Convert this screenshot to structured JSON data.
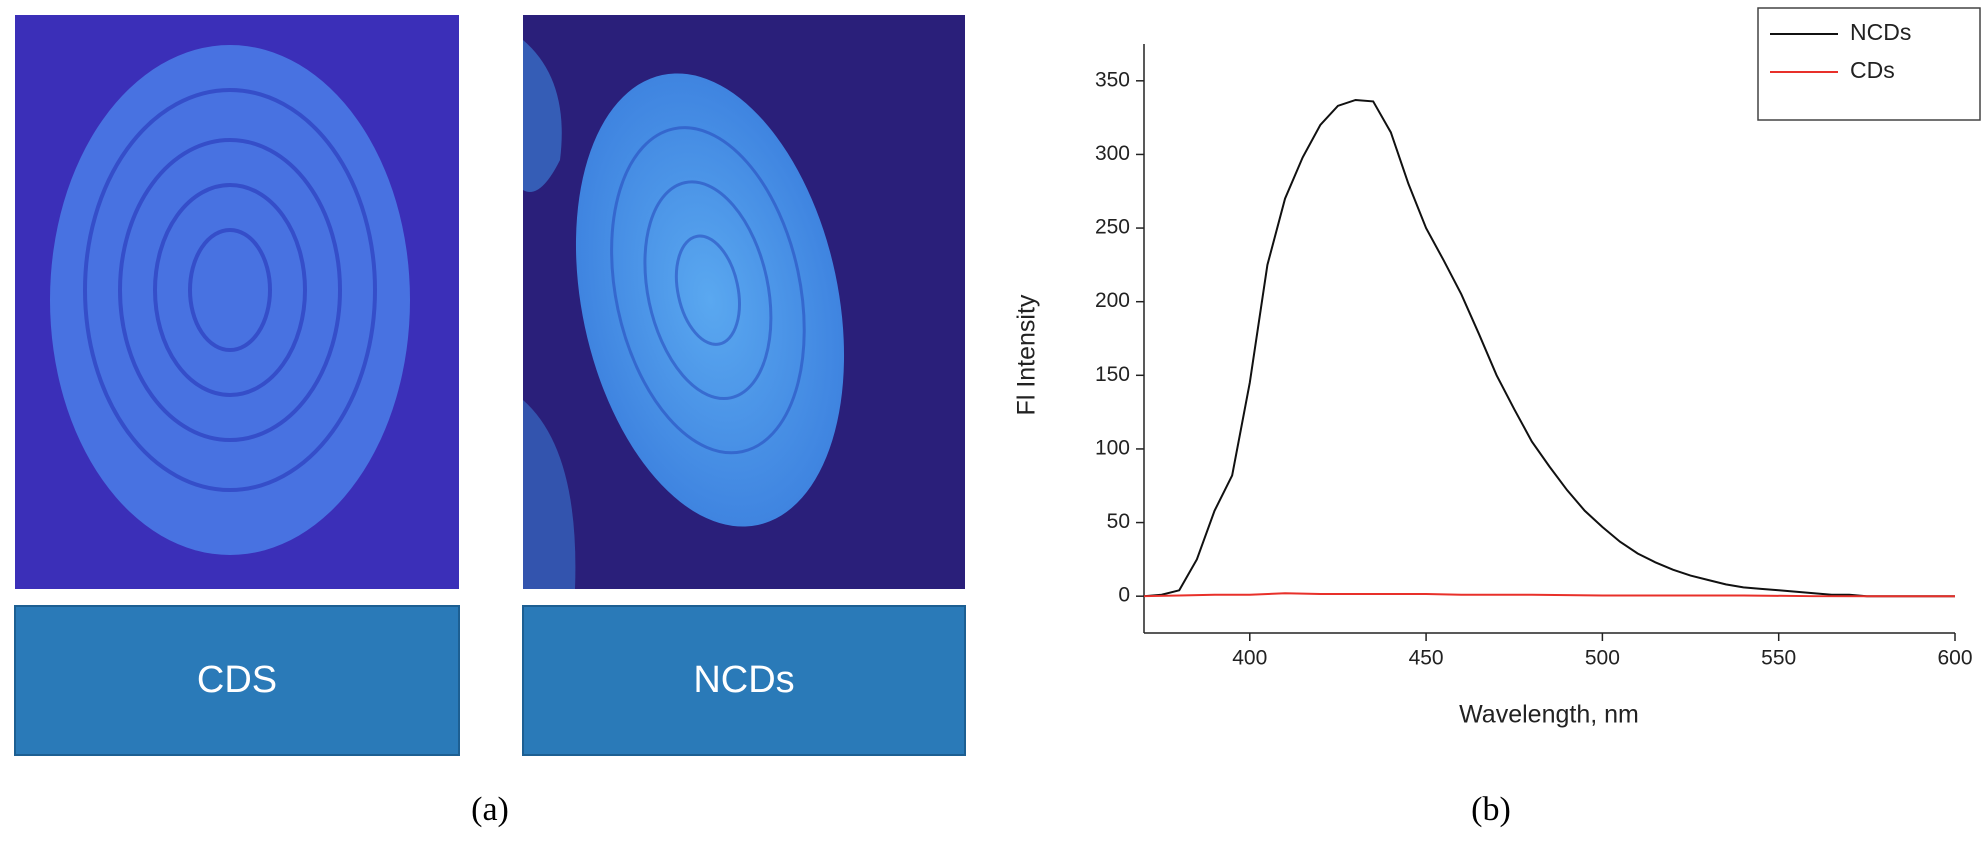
{
  "photos": [
    {
      "label": "CDS"
    },
    {
      "label": "NCDs"
    }
  ],
  "captions": [
    "(a)",
    "(b)"
  ],
  "chart_data": {
    "type": "line",
    "x_label": "Wavelength, nm",
    "y_label": "Fl Intensity",
    "xlim": [
      370,
      600
    ],
    "xticks": [
      400,
      450,
      500,
      550,
      600
    ],
    "ylim": [
      -25,
      375
    ],
    "yticks": [
      0,
      50,
      100,
      150,
      200,
      250,
      300,
      350
    ],
    "legend": "upper right",
    "series": [
      {
        "name": "NCDs",
        "color": "#111111",
        "x": [
          370,
          375,
          380,
          385,
          390,
          395,
          400,
          405,
          410,
          415,
          420,
          425,
          430,
          435,
          440,
          445,
          450,
          455,
          460,
          465,
          470,
          475,
          480,
          485,
          490,
          495,
          500,
          505,
          510,
          515,
          520,
          525,
          530,
          535,
          540,
          545,
          550,
          555,
          560,
          565,
          570,
          575,
          580,
          590,
          600
        ],
        "values": [
          0,
          1,
          4,
          25,
          58,
          82,
          145,
          225,
          270,
          298,
          320,
          333,
          337,
          336,
          315,
          280,
          250,
          228,
          205,
          178,
          150,
          127,
          105,
          88,
          72,
          58,
          47,
          37,
          29,
          23,
          18,
          14,
          11,
          8,
          6,
          5,
          4,
          3,
          2,
          1,
          1,
          0,
          0,
          0,
          0
        ]
      },
      {
        "name": "CDs",
        "color": "#e8302a",
        "x": [
          370,
          380,
          390,
          400,
          410,
          420,
          430,
          440,
          450,
          460,
          480,
          500,
          520,
          540,
          560,
          580,
          600
        ],
        "values": [
          0,
          0.5,
          1,
          1,
          2,
          1.5,
          1.5,
          1.5,
          1.5,
          1,
          1,
          0.5,
          0.5,
          0.5,
          0,
          0,
          0
        ]
      }
    ]
  }
}
